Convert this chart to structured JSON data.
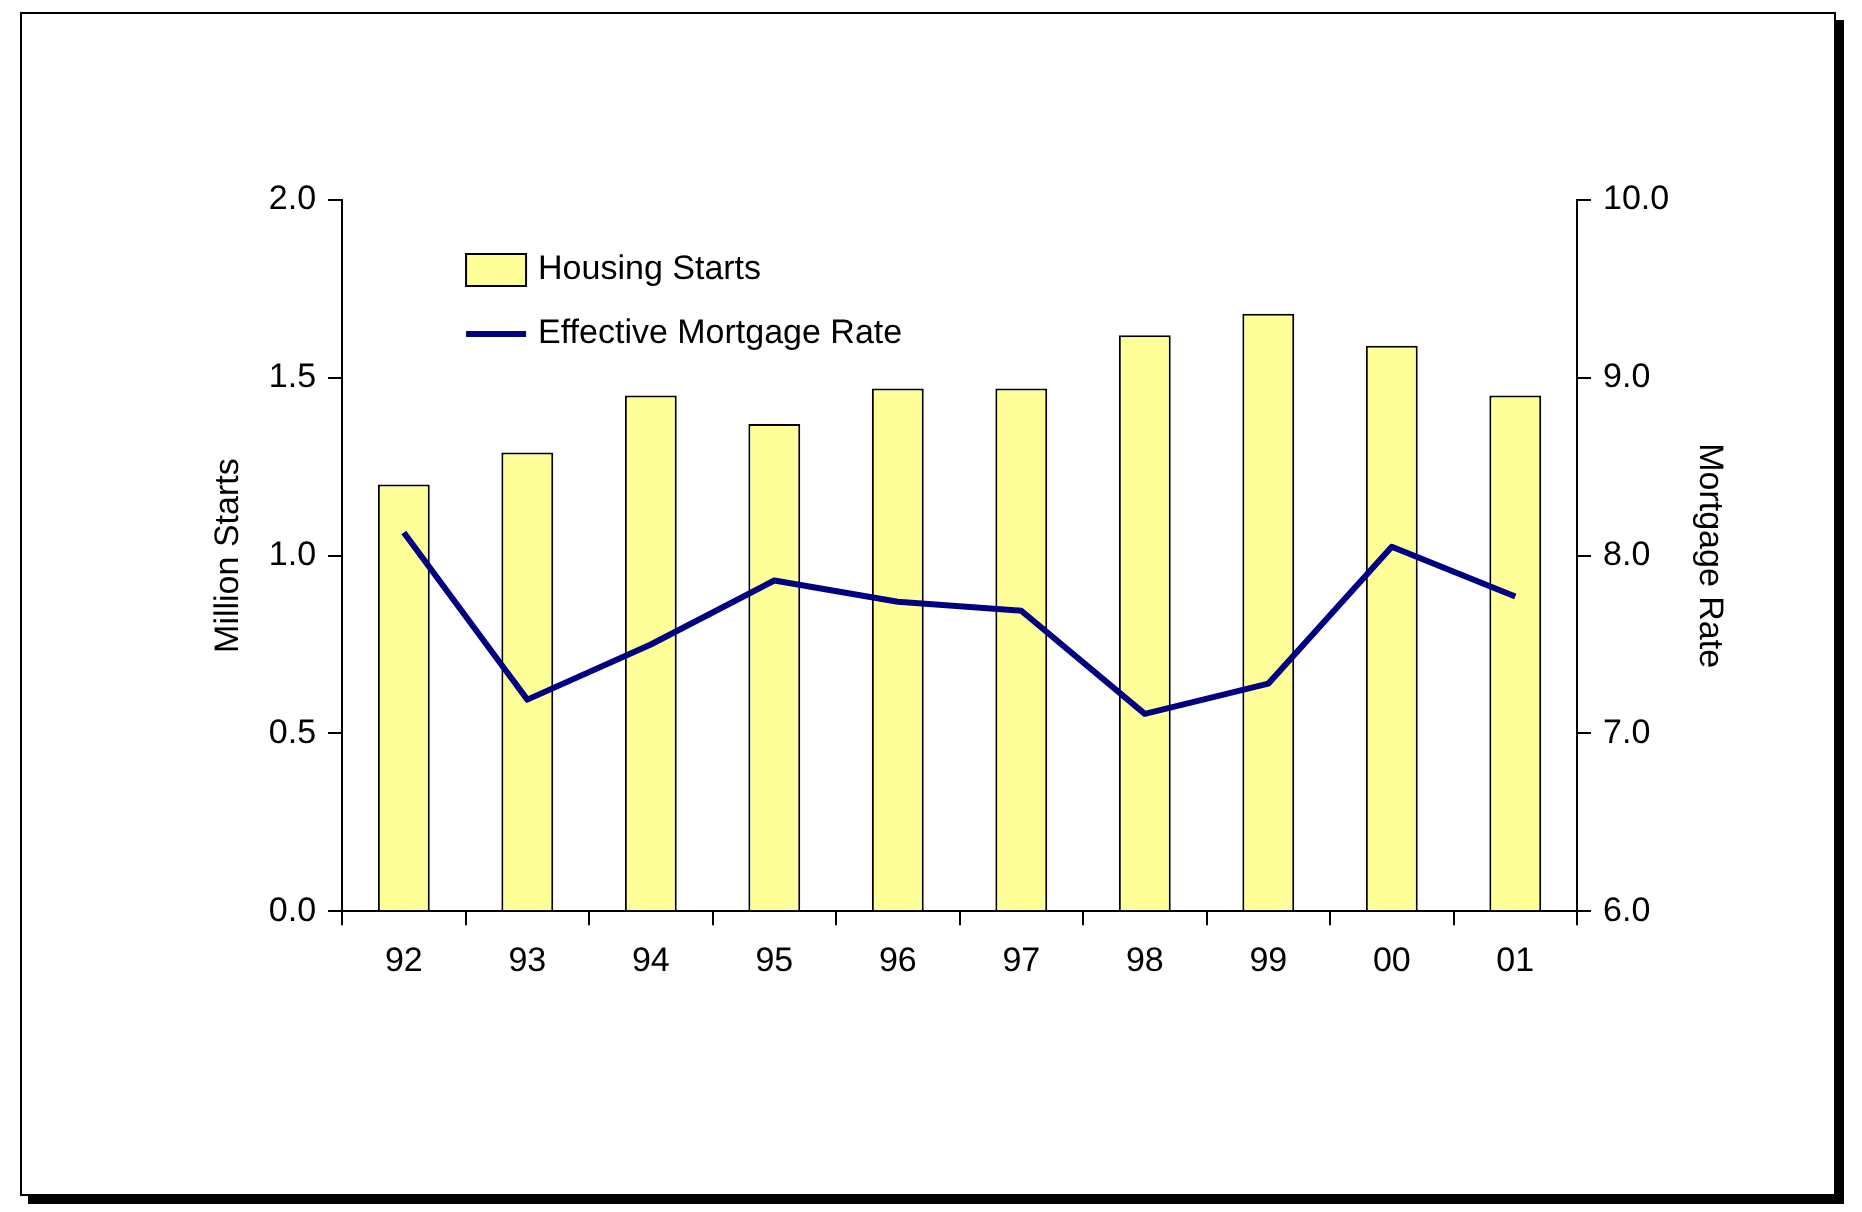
{
  "chart_data": {
    "type": "bar",
    "categories": [
      "92",
      "93",
      "94",
      "95",
      "96",
      "97",
      "98",
      "99",
      "00",
      "01"
    ],
    "series": [
      {
        "name": "Housing Starts",
        "color": "#ffff99",
        "values": [
          1.2,
          1.29,
          1.45,
          1.37,
          1.47,
          1.47,
          1.62,
          1.68,
          1.59,
          1.45
        ]
      },
      {
        "name": "Effective Mortgage Rate",
        "type": "line",
        "axis": "y2",
        "color": "#000080",
        "values": [
          8.13,
          7.19,
          7.5,
          7.86,
          7.74,
          7.69,
          7.11,
          7.28,
          8.05,
          7.77
        ]
      }
    ],
    "ylabel": "Million Starts",
    "y2label": "Mortgage Rate",
    "ylim": [
      0,
      2
    ],
    "yticks": [
      {
        "value": 0,
        "label": "0.0"
      },
      {
        "value": 0.5,
        "label": "0.5"
      },
      {
        "value": 1,
        "label": "1.0"
      },
      {
        "value": 1.5,
        "label": "1.5"
      },
      {
        "value": 2,
        "label": "2.0"
      }
    ],
    "y2lim": [
      6,
      10
    ],
    "y2ticks": [
      {
        "value": 6,
        "label": "6.0"
      },
      {
        "value": 7,
        "label": "7.0"
      },
      {
        "value": 8,
        "label": "8.0"
      },
      {
        "value": 9,
        "label": "9.0"
      },
      {
        "value": 10,
        "label": "10.0"
      }
    ],
    "grid": false,
    "legend": "top left",
    "marker": "none",
    "line_style": "solid"
  }
}
